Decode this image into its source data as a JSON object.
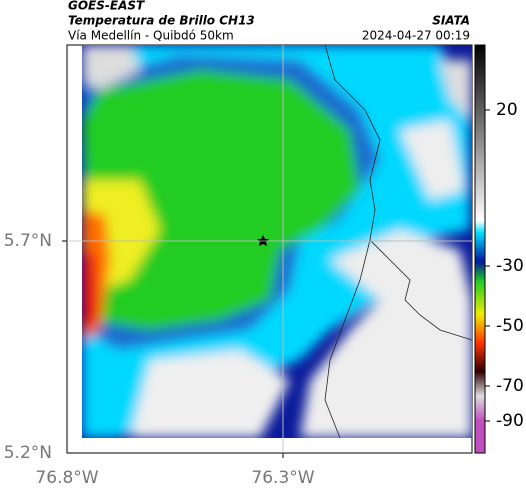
{
  "header": {
    "source": "GOES-EAST",
    "product": "Temperatura de Brillo CH13",
    "route": "Vía Medellín - Quibdó 50km",
    "agency": "SIATA",
    "timestamp": "2024-04-27 00:19"
  },
  "axes": {
    "y_labels": [
      "5.7°N",
      "5.2°N"
    ],
    "x_labels": [
      "76.8°W",
      "76.3°W"
    ]
  },
  "colorbar": {
    "labels": [
      "20",
      "-30",
      "-50",
      "-70",
      "-90"
    ]
  }
}
